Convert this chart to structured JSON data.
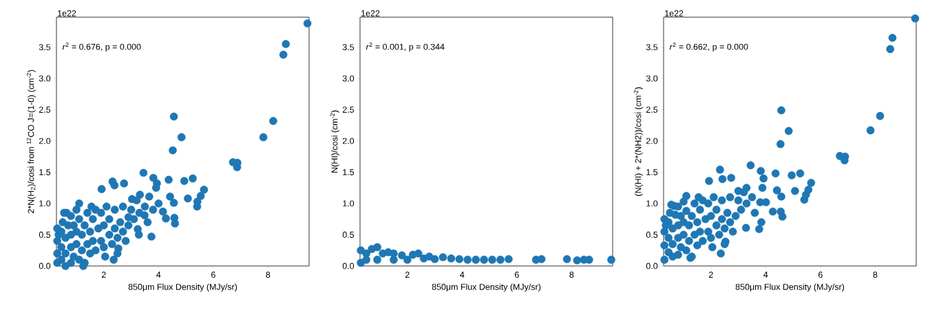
{
  "chart_data": [
    {
      "type": "scatter",
      "xlabel": "850μm Flux Density (MJy/sr)",
      "ylabel": "2*N(H$_{2}$)/cosi from $^{12}$CO J=(1-0) (cm$^{-2}$)",
      "annotations": [
        "1e22",
        "*r*$^{2}$ = 0.676, p = 0.000"
      ],
      "color": "#1f77b4",
      "xlim": [
        0.27,
        9.5
      ],
      "ylim": [
        0,
        3.98
      ],
      "xticks": [
        2,
        4,
        6,
        8
      ],
      "yticks": [
        {
          "value": 0,
          "label": "0.0"
        },
        0.5,
        {
          "value": 1,
          "label": "1.0"
        },
        1.5,
        {
          "value": 2,
          "label": "2.0"
        },
        2.5,
        {
          "value": 3,
          "label": "3.0"
        },
        3.5
      ],
      "x": [
        9.44,
        8.65,
        8.56,
        8.19,
        7.83,
        4.56,
        4.84,
        4.52,
        6.72,
        6.88,
        6.87,
        3.45,
        3.81,
        3.94,
        3.91,
        4.37,
        4.94,
        5.25,
        5.66,
        5.54,
        5.42,
        5.41,
        5.07,
        4.42,
        4.56,
        4.58,
        4.6,
        4.27,
        4.0,
        4.16,
        3.74,
        3.28,
        3.24,
        2.74,
        2.32,
        2.39,
        1.92,
        1.1,
        0.64,
        2.36,
        2.53,
        3.03,
        3.32,
        3.66,
        3.49,
        2.9,
        0.3,
        0.3,
        0.3,
        0.3,
        0.45,
        0.45,
        0.45,
        0.5,
        0.6,
        0.6,
        0.6,
        0.7,
        0.8,
        0.8,
        0.8,
        0.8,
        0.9,
        0.9,
        1.0,
        1.0,
        1.0,
        1.1,
        1.1,
        1.2,
        1.2,
        1.3,
        1.3,
        1.4,
        1.4,
        1.5,
        1.5,
        1.6,
        1.6,
        1.7,
        1.7,
        1.8,
        1.9,
        1.9,
        2.0,
        2.0,
        2.1,
        2.2,
        2.2,
        2.3,
        2.4,
        2.4,
        2.5,
        2.6,
        2.7,
        2.7,
        2.8,
        2.9,
        3.0,
        3.1,
        3.2,
        3.3,
        3.5,
        3.6,
        3.8,
        0.35,
        1.25,
        0.55,
        2.05,
        1.55,
        2.5
      ],
      "values": [
        3.88,
        3.55,
        3.38,
        2.32,
        2.06,
        2.39,
        2.06,
        1.85,
        1.66,
        1.65,
        1.58,
        1.49,
        1.41,
        1.32,
        1.25,
        1.38,
        1.36,
        1.4,
        1.22,
        1.12,
        1.03,
        0.95,
        1.08,
        1.11,
        1.01,
        0.77,
        0.68,
        0.76,
        1.0,
        0.87,
        0.47,
        0.5,
        0.59,
        1.32,
        1.35,
        1.29,
        1.23,
        1.0,
        0.85,
        0.1,
        0.28,
        1.07,
        1.14,
        1.11,
        0.81,
        0.78,
        0.05,
        0.2,
        0.4,
        0.6,
        0.1,
        0.3,
        0.55,
        0.7,
        0.0,
        0.2,
        0.45,
        0.65,
        0.05,
        0.3,
        0.5,
        0.8,
        0.15,
        0.65,
        0.35,
        0.55,
        0.9,
        0.1,
        0.75,
        0.25,
        0.5,
        0.65,
        0.05,
        0.35,
        0.85,
        0.2,
        0.55,
        0.75,
        0.4,
        0.9,
        0.25,
        0.6,
        0.4,
        0.85,
        0.3,
        0.65,
        0.95,
        0.5,
        0.75,
        0.35,
        0.6,
        0.9,
        0.45,
        0.7,
        0.55,
        0.95,
        0.4,
        0.65,
        0.9,
        0.75,
        1.05,
        0.85,
        0.95,
        0.7,
        0.9,
        0.5,
        0.0,
        0.85,
        0.15,
        0.95,
        0.2
      ]
    },
    {
      "type": "scatter",
      "xlabel": "850μm Flux Density (MJy/sr)",
      "ylabel": "N(HI)/cosi (cm$^{-2}$)",
      "annotations": [
        "1e22",
        "*r*$^{2}$ = 0.001, p = 0.344"
      ],
      "color": "#1f77b4",
      "xlim": [
        0.27,
        9.5
      ],
      "ylim": [
        0,
        3.98
      ],
      "xticks": [
        2,
        4,
        6,
        8
      ],
      "yticks": [
        {
          "value": 0,
          "label": "0.0"
        },
        0.5,
        {
          "value": 1,
          "label": "1.0"
        },
        1.5,
        {
          "value": 2,
          "label": "2.0"
        },
        2.5,
        {
          "value": 3,
          "label": "3.0"
        },
        3.5
      ],
      "x": [
        0.3,
        0.3,
        0.5,
        0.5,
        0.7,
        0.9,
        0.9,
        1.1,
        1.3,
        1.5,
        1.5,
        1.8,
        2.0,
        2.2,
        2.4,
        2.6,
        2.8,
        3.0,
        3.3,
        3.6,
        3.9,
        4.2,
        4.5,
        4.8,
        5.1,
        5.4,
        5.7,
        6.7,
        6.9,
        7.83,
        8.2,
        8.45,
        8.64,
        9.45
      ],
      "values": [
        0.05,
        0.25,
        0.1,
        0.2,
        0.27,
        0.3,
        0.1,
        0.2,
        0.22,
        0.1,
        0.2,
        0.17,
        0.1,
        0.18,
        0.2,
        0.12,
        0.15,
        0.11,
        0.14,
        0.12,
        0.11,
        0.1,
        0.1,
        0.1,
        0.1,
        0.1,
        0.11,
        0.1,
        0.11,
        0.11,
        0.09,
        0.1,
        0.1,
        0.1
      ]
    },
    {
      "type": "scatter",
      "xlabel": "850μm Flux Density (MJy/sr)",
      "ylabel": "(N(HI) + 2*(NH2))/cosi (cm$^{-2}$)",
      "annotations": [
        "1e22",
        "*r*$^{2}$ = 0.662, p = 0.000"
      ],
      "color": "#1f77b4",
      "xlim": [
        0.27,
        9.5
      ],
      "ylim": [
        0,
        3.98
      ],
      "xticks": [
        2,
        4,
        6,
        8
      ],
      "yticks": [
        {
          "value": 0,
          "label": "0.0"
        },
        0.5,
        {
          "value": 1,
          "label": "1.0"
        },
        1.5,
        {
          "value": 2,
          "label": "2.0"
        },
        2.5,
        {
          "value": 3,
          "label": "3.0"
        },
        3.5
      ],
      "x": [
        9.46,
        8.63,
        8.55,
        8.18,
        7.83,
        4.57,
        4.84,
        4.54,
        6.71,
        6.9,
        6.88,
        3.45,
        3.82,
        3.92,
        3.88,
        4.36,
        4.95,
        5.26,
        5.66,
        5.56,
        5.47,
        5.41,
        5.07,
        4.41,
        4.57,
        4.61,
        4.55,
        4.26,
        4.01,
        3.76,
        3.28,
        3.84,
        2.74,
        2.33,
        2.42,
        1.93,
        1.1,
        0.66,
        2.36,
        2.53,
        3.0,
        3.3,
        0.3,
        0.3,
        0.3,
        0.3,
        0.45,
        0.45,
        0.45,
        0.5,
        0.6,
        0.6,
        0.6,
        0.7,
        0.8,
        0.8,
        0.8,
        0.8,
        0.9,
        0.9,
        1.0,
        1.0,
        1.0,
        1.1,
        1.1,
        1.2,
        1.2,
        1.3,
        1.3,
        1.4,
        1.4,
        1.5,
        1.5,
        1.6,
        1.6,
        1.7,
        1.7,
        1.8,
        1.9,
        1.9,
        2.0,
        2.0,
        2.1,
        2.2,
        2.2,
        2.3,
        2.4,
        2.4,
        2.5,
        2.6,
        2.7,
        2.7,
        2.8,
        2.9,
        3.0,
        3.1,
        3.2,
        3.3,
        3.5,
        3.6,
        3.8,
        0.35,
        1.25,
        0.55,
        2.05,
        1.55,
        2.5
      ],
      "values": [
        3.96,
        3.65,
        3.47,
        2.4,
        2.17,
        2.49,
        2.16,
        1.95,
        1.76,
        1.75,
        1.69,
        1.61,
        1.52,
        1.4,
        1.25,
        1.48,
        1.45,
        1.48,
        1.33,
        1.22,
        1.14,
        1.06,
        1.2,
        1.21,
        1.11,
        0.79,
        0.87,
        0.87,
        1.02,
        0.59,
        0.61,
        0.7,
        1.41,
        1.54,
        1.39,
        1.36,
        1.12,
        0.96,
        0.2,
        0.39,
        1.2,
        1.25,
        0.1,
        0.33,
        0.55,
        0.75,
        0.22,
        0.45,
        0.7,
        0.85,
        0.15,
        0.35,
        0.6,
        0.82,
        0.18,
        0.45,
        0.65,
        0.95,
        0.3,
        0.8,
        0.5,
        0.7,
        1.03,
        0.25,
        0.88,
        0.4,
        0.65,
        0.8,
        0.15,
        0.5,
        1.0,
        0.33,
        0.7,
        0.9,
        0.55,
        1.05,
        0.4,
        0.75,
        0.55,
        1.0,
        0.45,
        0.8,
        1.1,
        0.65,
        0.9,
        0.5,
        0.75,
        1.05,
        0.6,
        0.85,
        0.7,
        1.1,
        0.55,
        0.8,
        1.05,
        0.9,
        1.18,
        1.0,
        1.1,
        0.85,
        1.02,
        0.65,
        0.13,
        0.98,
        0.3,
        1.1,
        0.35
      ]
    }
  ]
}
